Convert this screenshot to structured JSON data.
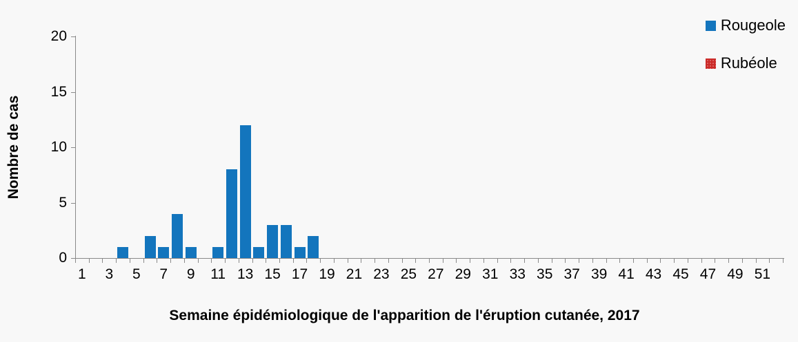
{
  "chart_data": {
    "type": "bar",
    "title": "",
    "xlabel": "Semaine épidémiologique de l'apparition de l'éruption cutanée, 2017",
    "ylabel": "Nombre de cas",
    "categories": [
      1,
      2,
      3,
      4,
      5,
      6,
      7,
      8,
      9,
      10,
      11,
      12,
      13,
      14,
      15,
      16,
      17,
      18,
      19,
      20,
      21,
      22,
      23,
      24,
      25,
      26,
      27,
      28,
      29,
      30,
      31,
      32,
      33,
      34,
      35,
      36,
      37,
      38,
      39,
      40,
      41,
      42,
      43,
      44,
      45,
      46,
      47,
      48,
      49,
      50,
      51,
      52
    ],
    "x_tick_labels": [
      1,
      3,
      5,
      7,
      9,
      11,
      13,
      15,
      17,
      19,
      21,
      23,
      25,
      27,
      29,
      31,
      33,
      35,
      37,
      39,
      41,
      43,
      45,
      47,
      49,
      51
    ],
    "y_ticks": [
      0,
      5,
      10,
      15,
      20
    ],
    "ylim": [
      0,
      20
    ],
    "grid": false,
    "legend_position": "top-right",
    "series": [
      {
        "name": "Rougeole",
        "color": "#1375bd",
        "pattern": "solid",
        "values": [
          0,
          0,
          0,
          1,
          0,
          2,
          1,
          4,
          1,
          0,
          1,
          8,
          12,
          1,
          3,
          3,
          1,
          2,
          0,
          0,
          0,
          0,
          0,
          0,
          0,
          0,
          0,
          0,
          0,
          0,
          0,
          0,
          0,
          0,
          0,
          0,
          0,
          0,
          0,
          0,
          0,
          0,
          0,
          0,
          0,
          0,
          0,
          0,
          0,
          0,
          0,
          0
        ]
      },
      {
        "name": "Rubéole",
        "color": "#cb2a28",
        "pattern": "dotted",
        "values": [
          0,
          0,
          0,
          0,
          0,
          0,
          0,
          0,
          0,
          0,
          0,
          0,
          0,
          0,
          0,
          0,
          0,
          0,
          0,
          0,
          0,
          0,
          0,
          0,
          0,
          0,
          0,
          0,
          0,
          0,
          0,
          0,
          0,
          0,
          0,
          0,
          0,
          0,
          0,
          0,
          0,
          0,
          0,
          0,
          0,
          0,
          0,
          0,
          0,
          0,
          0,
          0
        ]
      }
    ],
    "colors": {
      "background": "#f8f8f8",
      "axis": "#898989",
      "text": "#000000"
    }
  }
}
